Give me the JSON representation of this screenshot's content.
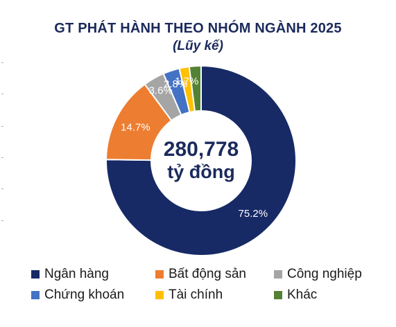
{
  "title": "GT PHÁT HÀNH THEO NHÓM NGÀNH 2025",
  "subtitle": "(Lũy kế)",
  "chart_data": {
    "type": "pie",
    "variant": "donut",
    "title": "GT PHÁT HÀNH THEO NHÓM NGÀNH 2025",
    "subtitle": "(Lũy kế)",
    "center_value": "280,778",
    "center_unit": "tỷ đồng",
    "legend_position": "bottom",
    "slices": [
      {
        "name": "Ngân hàng",
        "value": 75.2,
        "label": "75.2%",
        "color": "#172a66"
      },
      {
        "name": "Bất động sản",
        "value": 14.7,
        "label": "14.7%",
        "color": "#ed7d31"
      },
      {
        "name": "Công nghiệp",
        "value": 3.6,
        "label": "3.6%",
        "color": "#a5a5a5"
      },
      {
        "name": "Chứng khoán",
        "value": 2.8,
        "label": "2.8%",
        "color": "#4472c4"
      },
      {
        "name": "Tài chính",
        "value": 1.7,
        "label": "1.7%",
        "color": "#ffc000"
      },
      {
        "name": "Khác",
        "value": 2.0,
        "label": "",
        "color": "#548235"
      }
    ]
  }
}
